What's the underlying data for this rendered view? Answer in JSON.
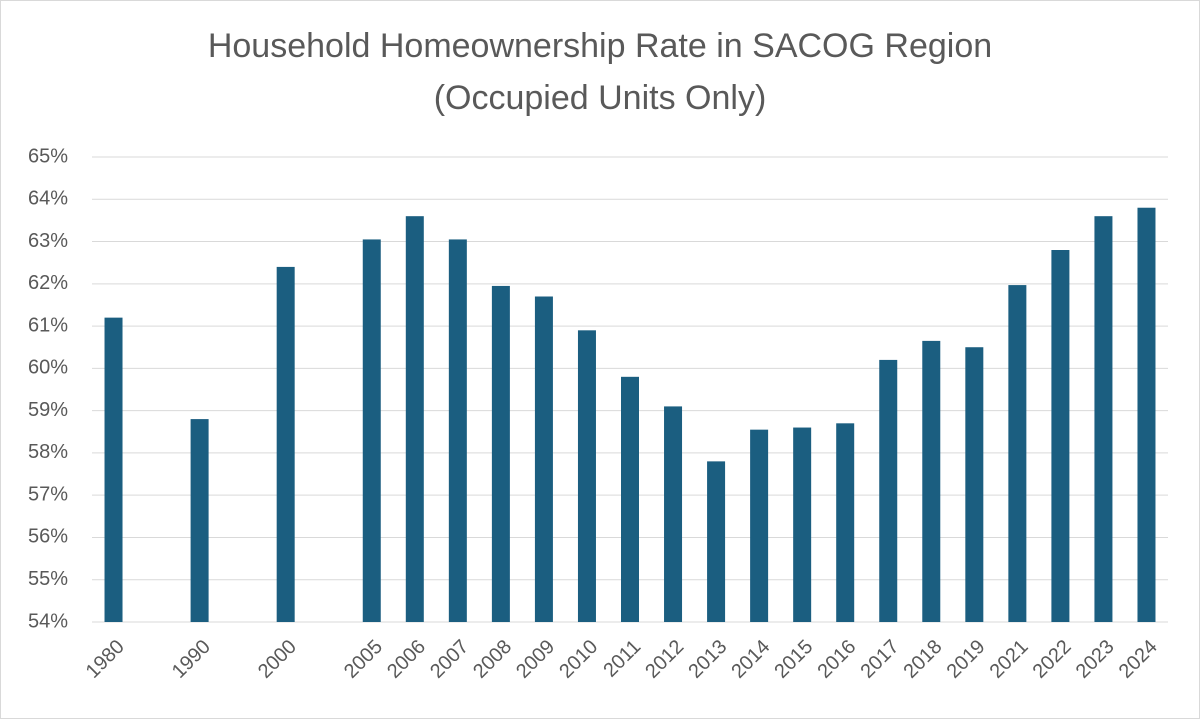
{
  "chart_data": {
    "type": "bar",
    "title": "Household Homeownership Rate in SACOG Region",
    "subtitle": "(Occupied Units Only)",
    "categories": [
      "1980",
      null,
      "1990",
      null,
      "2000",
      null,
      "2005",
      "2006",
      "2007",
      "2008",
      "2009",
      "2010",
      "2011",
      "2012",
      "2013",
      "2014",
      "2015",
      "2016",
      "2017",
      "2018",
      "2019",
      "2021",
      "2022",
      "2023",
      "2024"
    ],
    "values": [
      61.2,
      null,
      58.8,
      null,
      62.4,
      null,
      63.05,
      63.6,
      63.05,
      61.95,
      61.7,
      60.9,
      59.8,
      59.1,
      57.8,
      58.55,
      58.6,
      58.7,
      60.2,
      60.65,
      60.5,
      61.97,
      62.8,
      63.6,
      63.8
    ],
    "color": "#1b5e80",
    "ylim": [
      54,
      65
    ],
    "yticks": [
      {
        "value": 54,
        "label": "54%"
      },
      {
        "value": 55,
        "label": "55%"
      },
      {
        "value": 56,
        "label": "56%"
      },
      {
        "value": 57,
        "label": "57%"
      },
      {
        "value": 58,
        "label": "58%"
      },
      {
        "value": 59,
        "label": "59%"
      },
      {
        "value": 60,
        "label": "60%"
      },
      {
        "value": 61,
        "label": "61%"
      },
      {
        "value": 62,
        "label": "62%"
      },
      {
        "value": 63,
        "label": "63%"
      },
      {
        "value": 64,
        "label": "64%"
      },
      {
        "value": 65,
        "label": "65%"
      }
    ],
    "grid": true
  }
}
